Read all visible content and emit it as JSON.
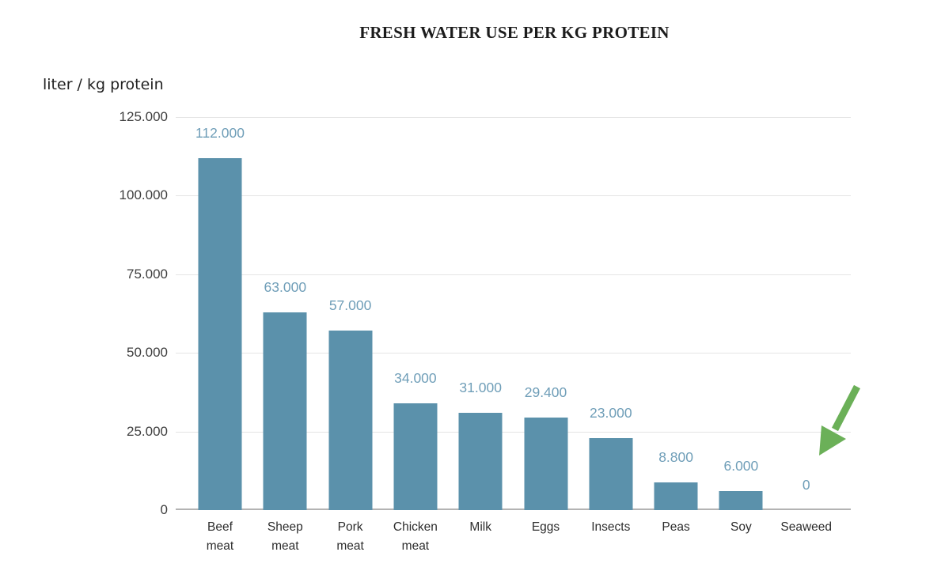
{
  "chart_data": {
    "type": "bar",
    "title": "FRESH WATER USE PER KG PROTEIN",
    "ylabel": "liter / kg protein",
    "xlabel": "",
    "categories": [
      "Beef meat",
      "Sheep meat",
      "Pork meat",
      "Chicken meat",
      "Milk",
      "Eggs",
      "Insects",
      "Peas",
      "Soy",
      "Seaweed"
    ],
    "category_display": [
      "Beef\nmeat",
      "Sheep\nmeat",
      "Pork\nmeat",
      "Chicken\nmeat",
      "Milk",
      "Eggs",
      "Insects",
      "Peas",
      "Soy",
      "Seaweed"
    ],
    "values": [
      112000,
      63000,
      57000,
      34000,
      31000,
      29400,
      23000,
      8800,
      6000,
      0
    ],
    "value_labels": [
      "112.000",
      "63.000",
      "57.000",
      "34.000",
      "31.000",
      "29.400",
      "23.000",
      "8.800",
      "6.000",
      "0"
    ],
    "yticks": [
      {
        "label": "125.000",
        "value": 125000
      },
      {
        "label": "100.000",
        "value": 100000
      },
      {
        "label": "75.000",
        "value": 75000
      },
      {
        "label": "50.000",
        "value": 50000
      },
      {
        "label": "25.000",
        "value": 25000
      },
      {
        "label": "0",
        "value": 0
      }
    ],
    "ylim": [
      0,
      125000
    ],
    "grid": true,
    "legend": "none",
    "annotation": {
      "type": "arrow",
      "points_at": "Seaweed",
      "description": "green arrow pointing at the Seaweed zero value",
      "color": "#6bb058"
    },
    "colors": {
      "bar": "#5b91ab",
      "value_label": "#6f9eb8",
      "grid": "#e4e4e4",
      "axis_line": "#b3b3b3",
      "tick_text": "#3f3f3f",
      "title_text": "#1c1c1c"
    }
  }
}
